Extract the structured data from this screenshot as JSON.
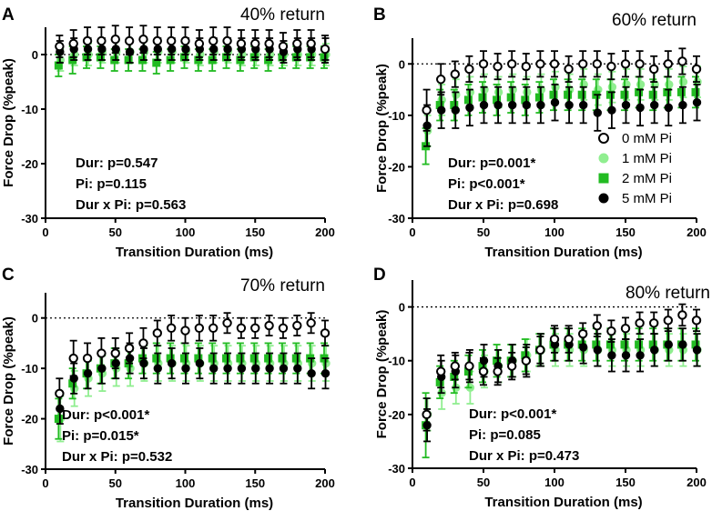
{
  "figure": {
    "x_axis_label": "Transition Duration (ms)",
    "y_axis_label": "Force Drop (%peak)",
    "legend": [
      {
        "label": "0 mM Pi",
        "series": "0mM"
      },
      {
        "label": "1 mM Pi",
        "series": "1mM"
      },
      {
        "label": "2 mM Pi",
        "series": "2mM"
      },
      {
        "label": "5 mM Pi",
        "series": "5mM"
      }
    ]
  },
  "series_styles": {
    "0mM": {
      "fill": "#ffffff",
      "stroke": "#000000",
      "marker": "circle"
    },
    "1mM": {
      "fill": "#90ee90",
      "stroke": "#90ee90",
      "marker": "circle"
    },
    "2mM": {
      "fill": "#22bb22",
      "stroke": "#22bb22",
      "marker": "square"
    },
    "5mM": {
      "fill": "#000000",
      "stroke": "#000000",
      "marker": "circle"
    }
  },
  "chart_data": [
    {
      "panel": "A",
      "type": "scatter",
      "title": "40% return",
      "xlabel": "Transition Duration (ms)",
      "ylabel": "Force Drop (%peak)",
      "xlim": [
        0,
        200
      ],
      "ylim": [
        -30,
        5
      ],
      "xticks": [
        0,
        50,
        100,
        150,
        200
      ],
      "yticks": [
        0,
        -10,
        -20,
        -30
      ],
      "stats": [
        "Dur: p=0.547",
        "Pi: p=0.115",
        "Dur x Pi: p=0.563"
      ],
      "x": [
        10,
        20,
        30,
        40,
        50,
        60,
        70,
        80,
        90,
        100,
        110,
        120,
        130,
        140,
        150,
        160,
        170,
        180,
        190,
        200
      ],
      "series": [
        {
          "name": "0 mM Pi",
          "key": "0mM",
          "values": [
            1.5,
            2,
            2.5,
            2.5,
            2.8,
            2.5,
            2.8,
            2.5,
            2.5,
            2.5,
            2,
            2.5,
            2.5,
            2,
            2,
            2,
            1.5,
            2,
            2,
            1
          ],
          "errors": [
            2,
            2.5,
            2.5,
            2.5,
            2.5,
            2.5,
            2.5,
            2.5,
            2.5,
            2.5,
            2.5,
            2.5,
            2.5,
            2.5,
            2.5,
            2.5,
            2.5,
            2.5,
            2.5,
            2.5
          ]
        },
        {
          "name": "1 mM Pi",
          "key": "1mM",
          "values": [
            -1,
            0,
            0,
            0.5,
            0.5,
            0.5,
            0.5,
            0.5,
            0.5,
            0.5,
            0,
            0.5,
            0.5,
            0,
            0,
            0,
            0,
            0,
            0,
            0
          ],
          "errors": [
            2,
            2,
            2,
            2,
            2,
            2,
            2,
            2,
            2,
            2,
            2,
            2,
            2,
            2,
            2,
            2,
            2,
            2,
            2,
            2
          ]
        },
        {
          "name": "2 mM Pi",
          "key": "2mM",
          "values": [
            -2,
            -1,
            -0.5,
            -0.5,
            -1,
            -1,
            -1,
            -1.5,
            -1,
            -0.5,
            -1,
            -1,
            -0.5,
            -1,
            -0.5,
            -1,
            -0.5,
            -0.5,
            -0.5,
            -0.5
          ],
          "errors": [
            2,
            2.5,
            2,
            2,
            2,
            2,
            2,
            2,
            2,
            2,
            2,
            2,
            2,
            2,
            2,
            2,
            2,
            2,
            2,
            2
          ]
        },
        {
          "name": "5 mM Pi",
          "key": "5mM",
          "values": [
            0.5,
            1,
            1,
            1,
            1,
            0.5,
            1,
            1,
            1,
            1,
            1,
            1,
            1,
            1,
            1,
            1,
            0.5,
            1,
            1,
            1
          ],
          "errors": [
            2,
            2,
            2,
            2,
            2,
            2,
            2,
            2,
            2,
            2,
            2,
            2,
            2,
            2,
            2,
            2,
            2,
            2,
            2,
            2
          ]
        }
      ]
    },
    {
      "panel": "B",
      "type": "scatter",
      "title": "60% return",
      "xlabel": "Transition Duration (ms)",
      "ylabel": "Force Drop (%peak)",
      "xlim": [
        0,
        200
      ],
      "ylim": [
        -30,
        5
      ],
      "xticks": [
        0,
        50,
        100,
        150,
        200
      ],
      "yticks": [
        0,
        -10,
        -20,
        -30
      ],
      "stats": [
        "Dur: p=0.001*",
        "Pi: p<0.001*",
        "Dur x Pi: p=0.698"
      ],
      "x": [
        10,
        20,
        30,
        40,
        50,
        60,
        70,
        80,
        90,
        100,
        110,
        120,
        130,
        140,
        150,
        160,
        170,
        180,
        190,
        200
      ],
      "series": [
        {
          "name": "0 mM Pi",
          "key": "0mM",
          "values": [
            -9,
            -3,
            -2,
            -1,
            0,
            -0.5,
            0,
            -0.5,
            0,
            0,
            -1,
            0,
            0,
            -0.5,
            0,
            0,
            -1,
            0,
            0.5,
            -1
          ],
          "errors": [
            4,
            3,
            2.5,
            2.5,
            2.5,
            2.5,
            2.5,
            2.5,
            2.5,
            2.5,
            2.5,
            2.5,
            2.5,
            2.5,
            2.5,
            2.5,
            2.5,
            2.5,
            2.5,
            2.5
          ]
        },
        {
          "name": "1 mM Pi",
          "key": "1mM",
          "values": [
            -13,
            -7,
            -6,
            -5.5,
            -5,
            -5.5,
            -5,
            -5.5,
            -5,
            -4.5,
            -5,
            -4,
            -5,
            -4.5,
            -4,
            -4,
            -4,
            -4,
            -3.5,
            -3.5
          ],
          "errors": [
            3,
            3,
            3,
            3,
            3,
            3,
            3,
            3,
            3,
            3,
            3,
            3,
            3,
            3,
            3,
            3,
            3,
            3,
            3,
            3
          ]
        },
        {
          "name": "2 mM Pi",
          "key": "2mM",
          "values": [
            -16,
            -8,
            -8,
            -7,
            -6.5,
            -7,
            -6.5,
            -7,
            -6.5,
            -6,
            -6,
            -6,
            -6,
            -6,
            -6,
            -5.5,
            -6,
            -5.5,
            -5.5,
            -5.5
          ],
          "errors": [
            3.5,
            3,
            3,
            3,
            3,
            3,
            3,
            3,
            3,
            3,
            3,
            3,
            3,
            3,
            3,
            3,
            3,
            3,
            3,
            3
          ]
        },
        {
          "name": "5 mM Pi",
          "key": "5mM",
          "values": [
            -12,
            -9,
            -9,
            -8.5,
            -8,
            -8,
            -8,
            -8,
            -8,
            -7.5,
            -8,
            -8,
            -9.5,
            -9,
            -8,
            -8.5,
            -8,
            -8.5,
            -8,
            -7.5
          ],
          "errors": [
            4,
            3.5,
            3.5,
            3.5,
            3.5,
            3.5,
            3.5,
            3.5,
            3.5,
            3.5,
            3.5,
            3.5,
            3.5,
            3.5,
            3.5,
            3.5,
            3.5,
            3.5,
            3.5,
            3.5
          ]
        }
      ]
    },
    {
      "panel": "C",
      "type": "scatter",
      "title": "70% return",
      "xlabel": "Transition Duration (ms)",
      "ylabel": "Force Drop (%peak)",
      "xlim": [
        0,
        200
      ],
      "ylim": [
        -30,
        5
      ],
      "xticks": [
        0,
        50,
        100,
        150,
        200
      ],
      "yticks": [
        0,
        -10,
        -20,
        -30
      ],
      "stats": [
        "Dur: p<0.001*",
        "Pi: p=0.015*",
        "Dur x Pi: p=0.532"
      ],
      "x": [
        10,
        20,
        30,
        40,
        50,
        60,
        70,
        80,
        90,
        100,
        110,
        120,
        130,
        140,
        150,
        160,
        170,
        180,
        190,
        200
      ],
      "series": [
        {
          "name": "0 mM Pi",
          "key": "0mM",
          "values": [
            -15,
            -8,
            -8,
            -7,
            -7,
            -6,
            -5,
            -3,
            -2,
            -2.5,
            -2,
            -2,
            -1,
            -2,
            -2,
            -1.5,
            -2,
            -1.5,
            -1,
            -3
          ],
          "errors": [
            3,
            3.5,
            3,
            3,
            3,
            3,
            3,
            2.5,
            2.5,
            2.5,
            2.5,
            2.5,
            2,
            2,
            2,
            2,
            2,
            2,
            2,
            2.5
          ]
        },
        {
          "name": "1 mM Pi",
          "key": "1mM",
          "values": [
            -20,
            -14,
            -12,
            -11,
            -10,
            -10,
            -9,
            -9,
            -9,
            -9,
            -9,
            -9,
            -9,
            -9,
            -9,
            -9,
            -9,
            -9,
            -9,
            -9
          ],
          "errors": [
            4.5,
            3.5,
            3.5,
            3.5,
            3.5,
            3.5,
            3.5,
            3.5,
            3.5,
            3.5,
            3.5,
            3.5,
            3.5,
            3.5,
            3.5,
            3.5,
            3.5,
            3.5,
            3.5,
            3.5
          ]
        },
        {
          "name": "2 mM Pi",
          "key": "2mM",
          "values": [
            -20,
            -13,
            -11,
            -10,
            -9,
            -9,
            -8,
            -8,
            -8,
            -8,
            -8,
            -8,
            -8,
            -8,
            -8,
            -8,
            -8,
            -8,
            -8,
            -8
          ],
          "errors": [
            4,
            3,
            3,
            3,
            3,
            3,
            3,
            3,
            3,
            3,
            3,
            3,
            3,
            3,
            3,
            3,
            3,
            3,
            3,
            3
          ]
        },
        {
          "name": "5 mM Pi",
          "key": "5mM",
          "values": [
            -18,
            -12,
            -11,
            -10,
            -9,
            -8,
            -9,
            -10,
            -9,
            -10,
            -9,
            -10,
            -10,
            -10,
            -10,
            -10,
            -10,
            -10,
            -11,
            -11
          ],
          "errors": [
            3,
            3,
            3,
            3,
            3,
            3,
            3,
            3,
            3,
            3,
            3,
            3,
            3,
            3,
            3,
            3,
            3,
            3,
            3,
            3
          ]
        }
      ]
    },
    {
      "panel": "D",
      "type": "scatter",
      "title": "80% return",
      "xlabel": "Transition Duration (ms)",
      "ylabel": "Force Drop (%peak)",
      "xlim": [
        0,
        200
      ],
      "ylim": [
        -30,
        5
      ],
      "xticks": [
        0,
        50,
        100,
        150,
        200
      ],
      "yticks": [
        0,
        -10,
        -20,
        -30
      ],
      "stats": [
        "Dur: p<0.001*",
        "Pi: p=0.085",
        "Dur x Pi: p=0.473"
      ],
      "x": [
        10,
        20,
        30,
        40,
        50,
        60,
        70,
        80,
        90,
        100,
        110,
        120,
        130,
        140,
        150,
        160,
        170,
        180,
        190,
        200
      ],
      "series": [
        {
          "name": "0 mM Pi",
          "key": "0mM",
          "values": [
            -20,
            -12,
            -11,
            -11,
            -12,
            -12,
            -11,
            -10,
            -8,
            -6,
            -6,
            -5,
            -3.5,
            -4.5,
            -4,
            -3,
            -3,
            -2.5,
            -1.5,
            -2.5
          ],
          "errors": [
            3,
            3,
            2.5,
            2.5,
            2.5,
            2.5,
            2.5,
            2.5,
            2.5,
            2.5,
            2.5,
            2,
            2,
            2,
            2,
            2,
            2,
            2,
            2,
            2
          ]
        },
        {
          "name": "1 mM Pi",
          "key": "1mM",
          "values": [
            -20,
            -16,
            -15,
            -15,
            -12,
            -11,
            -10,
            -9,
            -8,
            -8,
            -8,
            -8,
            -8,
            -8,
            -8,
            -8,
            -8,
            -8,
            -8,
            -8
          ],
          "errors": [
            3,
            3,
            3,
            3,
            3,
            3,
            3,
            3,
            3,
            3,
            3,
            3,
            3,
            3,
            3,
            3,
            3,
            3,
            3,
            3
          ]
        },
        {
          "name": "2 mM Pi",
          "key": "2mM",
          "values": [
            -22,
            -14,
            -13,
            -12,
            -11,
            -10,
            -10,
            -9,
            -8,
            -7,
            -7,
            -7,
            -7,
            -7,
            -7,
            -7,
            -7,
            -7,
            -7,
            -7
          ],
          "errors": [
            6,
            3,
            3,
            3,
            3,
            3,
            3,
            3,
            3,
            3,
            3,
            3,
            3,
            3,
            3,
            3,
            3,
            3,
            3,
            3
          ]
        },
        {
          "name": "5 mM Pi",
          "key": "5mM",
          "values": [
            -22,
            -13,
            -12,
            -11,
            -10,
            -11,
            -10,
            -10,
            -8,
            -7,
            -7,
            -7.5,
            -8,
            -9,
            -9,
            -9,
            -8,
            -7,
            -7,
            -8
          ],
          "errors": [
            3,
            3,
            3,
            3,
            3,
            3,
            3,
            3,
            3,
            3,
            3,
            3,
            3,
            3,
            3,
            3,
            3,
            3,
            3,
            3
          ]
        }
      ]
    }
  ]
}
